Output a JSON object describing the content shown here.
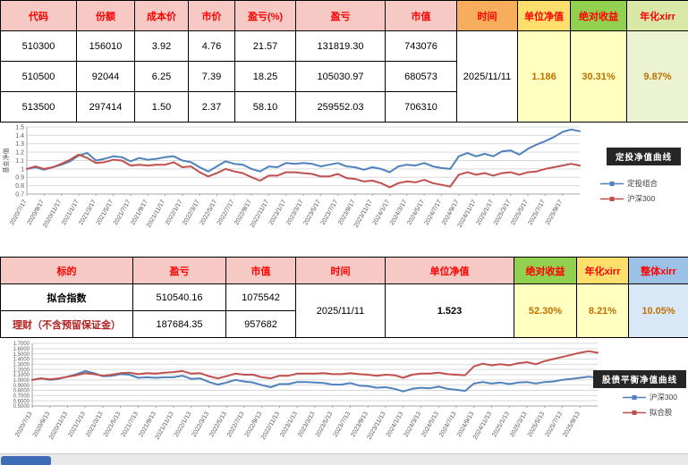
{
  "holdings_table": {
    "headers": [
      "代码",
      "份额",
      "成本价",
      "市价",
      "盈亏(%)",
      "盈亏",
      "市值",
      "时间",
      "单位净值",
      "绝对收益",
      "年化xirr"
    ],
    "rows": [
      [
        "510300",
        "156010",
        "3.92",
        "4.76",
        "21.57",
        "131819.30",
        "743076"
      ],
      [
        "510500",
        "92044",
        "6.25",
        "7.39",
        "18.25",
        "105030.97",
        "680573"
      ],
      [
        "513500",
        "297414",
        "1.50",
        "2.37",
        "58.10",
        "259552.03",
        "706310"
      ]
    ],
    "time_value": "2025/11/11",
    "unit_nav": "1.186",
    "abs_return": "30.31%",
    "annual_xirr": "9.87%"
  },
  "summary_table": {
    "headers": [
      "标的",
      "盈亏",
      "市值",
      "时间",
      "单位净值",
      "绝对收益",
      "年化xirr",
      "整体xirr"
    ],
    "rows": [
      [
        "拟合指数",
        "510540.16",
        "1075542"
      ],
      [
        "理财（不含预留保证金）",
        "187684.35",
        "957682"
      ]
    ],
    "time_value": "2025/11/11",
    "unit_nav": "1.523",
    "abs_return": "52.30%",
    "annual_xirr": "8.21%",
    "overall_xirr": "10.05%"
  },
  "colors": {
    "header_pink": "#f6c9c4",
    "header_orange": "#f6ad5c",
    "header_yellow": "#ffdf6b",
    "header_green": "#92d050",
    "header_palegreen": "#d9e8a7",
    "header_blue": "#9bc2e6",
    "value_yellow": "#ffffc0",
    "series_blue": "#4f81bd",
    "series_red": "#c0504d"
  },
  "chart_data": [
    {
      "type": "line",
      "title": "定投净值曲线",
      "ylabel": "基金净值",
      "ylim": [
        0.7,
        1.5
      ],
      "grid": true,
      "legend_position": "right",
      "yticks": [
        "1.5",
        "1.4",
        "1.3",
        "1.2",
        "1.1",
        "1",
        "0.9",
        "0.8",
        "0.7"
      ],
      "xticklabels": [
        "2020/7/17",
        "2020/9/17",
        "2020/11/17",
        "2021/1/17",
        "2021/3/17",
        "2021/5/17",
        "2021/7/17",
        "2021/9/17",
        "2021/11/17",
        "2022/1/17",
        "2022/3/17",
        "2022/5/17",
        "2022/7/17",
        "2022/9/17",
        "2022/11/17",
        "2023/1/17",
        "2023/3/17",
        "2023/5/17",
        "2023/7/17",
        "2023/9/17",
        "2023/11/17",
        "2024/1/17",
        "2024/3/17",
        "2024/5/17",
        "2024/7/17",
        "2024/9/17",
        "2024/11/17",
        "2025/1/17",
        "2025/3/17",
        "2025/5/17",
        "2025/7/17",
        "2025/9/17"
      ],
      "series": [
        {
          "name": "定投组合",
          "color": "#4f81bd",
          "values": [
            1.0,
            1.02,
            0.99,
            1.02,
            1.05,
            1.09,
            1.16,
            1.19,
            1.1,
            1.12,
            1.15,
            1.14,
            1.09,
            1.13,
            1.11,
            1.12,
            1.14,
            1.15,
            1.1,
            1.08,
            1.02,
            0.97,
            1.03,
            1.09,
            1.06,
            1.05,
            1.0,
            0.97,
            1.03,
            1.02,
            1.07,
            1.06,
            1.07,
            1.06,
            1.03,
            1.05,
            1.07,
            1.03,
            1.02,
            0.99,
            1.02,
            1.0,
            0.96,
            1.03,
            1.05,
            1.04,
            1.07,
            1.03,
            1.01,
            1.0,
            1.15,
            1.19,
            1.15,
            1.18,
            1.15,
            1.21,
            1.22,
            1.17,
            1.24,
            1.29,
            1.33,
            1.38,
            1.44,
            1.47,
            1.45
          ]
        },
        {
          "name": "沪深300",
          "color": "#c0504d",
          "values": [
            1.0,
            1.03,
            1.0,
            1.02,
            1.06,
            1.11,
            1.17,
            1.13,
            1.07,
            1.08,
            1.11,
            1.1,
            1.04,
            1.05,
            1.04,
            1.05,
            1.05,
            1.08,
            1.02,
            1.03,
            0.96,
            0.91,
            0.95,
            1.0,
            0.97,
            0.95,
            0.9,
            0.86,
            0.92,
            0.92,
            0.96,
            0.96,
            0.95,
            0.94,
            0.91,
            0.91,
            0.94,
            0.89,
            0.88,
            0.85,
            0.86,
            0.83,
            0.78,
            0.83,
            0.85,
            0.84,
            0.87,
            0.83,
            0.81,
            0.79,
            0.93,
            0.96,
            0.93,
            0.95,
            0.92,
            0.95,
            0.96,
            0.93,
            0.96,
            0.97,
            1.0,
            1.02,
            1.04,
            1.06,
            1.04
          ]
        }
      ]
    },
    {
      "type": "line",
      "title": "股债平衡净值曲线",
      "ylabel": "",
      "ylim": [
        0.5,
        1.7
      ],
      "grid": true,
      "legend_position": "right",
      "yticks": [
        "1.7000",
        "1.6000",
        "1.5000",
        "1.4000",
        "1.3000",
        "1.2000",
        "1.1000",
        "1.0000",
        "0.9000",
        "0.8000",
        "0.7000",
        "0.6000",
        "0.5000"
      ],
      "xticklabels": [
        "2020/7/13",
        "2020/9/13",
        "2020/11/13",
        "2021/1/13",
        "2021/3/13",
        "2021/5/13",
        "2021/7/13",
        "2021/9/13",
        "2021/11/13",
        "2022/1/13",
        "2022/3/13",
        "2022/5/13",
        "2022/7/13",
        "2022/9/13",
        "2022/11/13",
        "2023/1/13",
        "2023/3/13",
        "2023/5/13",
        "2023/7/13",
        "2023/9/13",
        "2023/11/13",
        "2024/1/13",
        "2024/3/13",
        "2024/5/13",
        "2024/7/13",
        "2024/9/13",
        "2024/11/13",
        "2025/1/13",
        "2025/3/13",
        "2025/5/13",
        "2025/7/13",
        "2025/9/13"
      ],
      "series": [
        {
          "name": "沪深300",
          "color": "#4f81bd",
          "values": [
            1.0,
            1.03,
            1.0,
            1.02,
            1.06,
            1.11,
            1.17,
            1.13,
            1.07,
            1.08,
            1.11,
            1.1,
            1.04,
            1.05,
            1.04,
            1.05,
            1.05,
            1.08,
            1.02,
            1.03,
            0.96,
            0.91,
            0.95,
            1.0,
            0.97,
            0.95,
            0.9,
            0.86,
            0.92,
            0.92,
            0.96,
            0.96,
            0.95,
            0.94,
            0.91,
            0.91,
            0.94,
            0.89,
            0.88,
            0.85,
            0.86,
            0.83,
            0.78,
            0.83,
            0.85,
            0.84,
            0.87,
            0.83,
            0.81,
            0.79,
            0.93,
            0.96,
            0.93,
            0.95,
            0.92,
            0.95,
            0.96,
            0.93,
            0.96,
            0.97,
            1.0,
            1.02,
            1.04,
            1.06,
            1.04
          ]
        },
        {
          "name": "拟合股",
          "color": "#c0504d",
          "values": [
            1.0,
            1.03,
            1.01,
            1.03,
            1.06,
            1.09,
            1.13,
            1.11,
            1.08,
            1.1,
            1.13,
            1.14,
            1.11,
            1.13,
            1.12,
            1.14,
            1.15,
            1.17,
            1.12,
            1.13,
            1.07,
            1.03,
            1.07,
            1.12,
            1.1,
            1.1,
            1.05,
            1.03,
            1.08,
            1.08,
            1.12,
            1.12,
            1.12,
            1.13,
            1.11,
            1.11,
            1.13,
            1.11,
            1.1,
            1.08,
            1.1,
            1.09,
            1.04,
            1.1,
            1.12,
            1.12,
            1.14,
            1.11,
            1.1,
            1.09,
            1.26,
            1.31,
            1.28,
            1.3,
            1.28,
            1.32,
            1.34,
            1.3,
            1.36,
            1.4,
            1.44,
            1.48,
            1.52,
            1.55,
            1.52
          ]
        }
      ]
    }
  ]
}
